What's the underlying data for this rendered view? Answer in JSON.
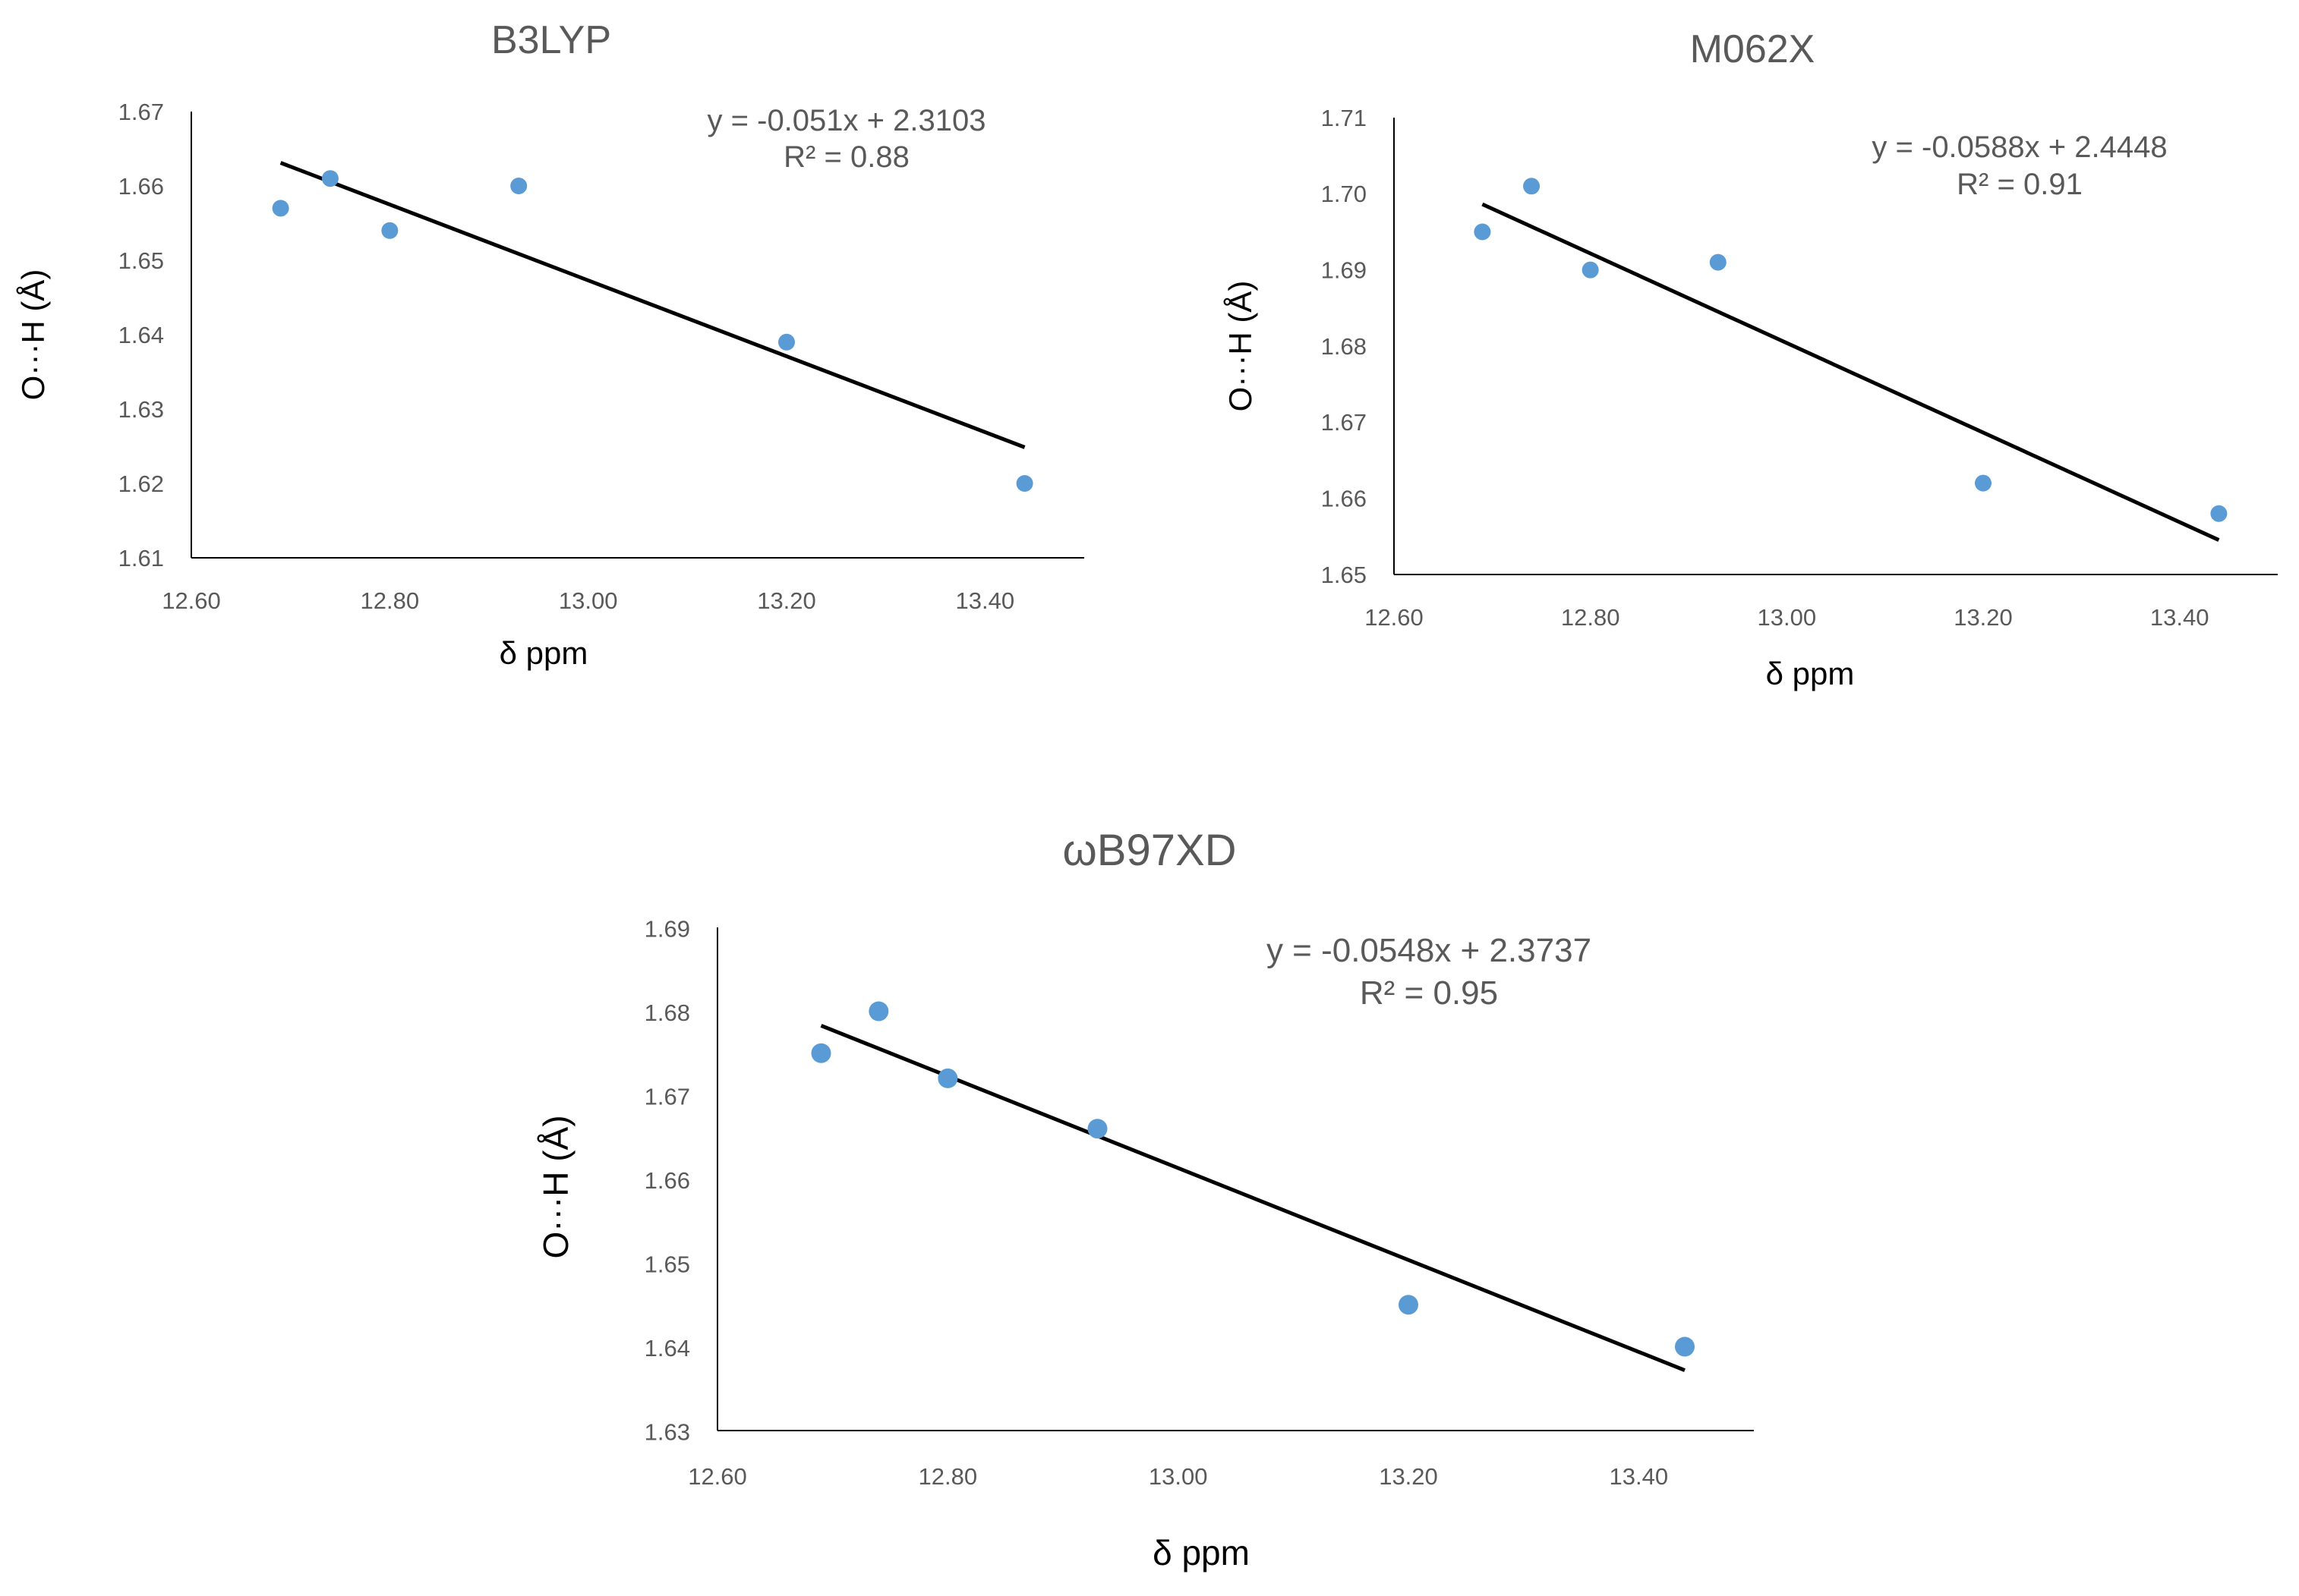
{
  "chart_data": [
    {
      "type": "scatter",
      "title": "B3LYP",
      "xlabel": "δ ppm",
      "ylabel": "O···H (Å)",
      "xlim": [
        12.6,
        13.5
      ],
      "ylim": [
        1.61,
        1.67
      ],
      "xticks": [
        "12.60",
        "12.80",
        "13.00",
        "13.20",
        "13.40"
      ],
      "yticks": [
        "1.61",
        "1.62",
        "1.63",
        "1.64",
        "1.65",
        "1.66",
        "1.67"
      ],
      "x": [
        12.69,
        12.74,
        12.8,
        12.93,
        13.2,
        13.44
      ],
      "y": [
        1.657,
        1.661,
        1.654,
        1.66,
        1.639,
        1.62
      ],
      "trendline": {
        "slope": -0.051,
        "intercept": 2.3103,
        "x_from": 12.69,
        "x_to": 13.44
      },
      "equation": "y = -0.051x + 2.3103",
      "r2": "R² = 0.88",
      "series_color": "#5B9BD5"
    },
    {
      "type": "scatter",
      "title": "M062X",
      "xlabel": "δ ppm",
      "ylabel": "O···H (Å)",
      "xlim": [
        12.6,
        13.5
      ],
      "ylim": [
        1.65,
        1.71
      ],
      "xticks": [
        "12.60",
        "12.80",
        "13.00",
        "13.20",
        "13.40"
      ],
      "yticks": [
        "1.65",
        "1.66",
        "1.67",
        "1.68",
        "1.69",
        "1.70",
        "1.71"
      ],
      "x": [
        12.69,
        12.74,
        12.8,
        12.93,
        13.2,
        13.44
      ],
      "y": [
        1.695,
        1.701,
        1.69,
        1.691,
        1.662,
        1.658
      ],
      "trendline": {
        "slope": -0.0588,
        "intercept": 2.4448,
        "x_from": 12.69,
        "x_to": 13.44
      },
      "equation": "y = -0.0588x + 2.4448",
      "r2": "R² = 0.91",
      "series_color": "#5B9BD5"
    },
    {
      "type": "scatter",
      "title": "ωB97XD",
      "xlabel": "δ ppm",
      "ylabel": "O···H (Å)",
      "xlim": [
        12.6,
        13.5
      ],
      "ylim": [
        1.63,
        1.69
      ],
      "xticks": [
        "12.60",
        "12.80",
        "13.00",
        "13.20",
        "13.40"
      ],
      "yticks": [
        "1.63",
        "1.64",
        "1.65",
        "1.66",
        "1.67",
        "1.68",
        "1.69"
      ],
      "x": [
        12.69,
        12.74,
        12.8,
        12.93,
        13.2,
        13.44
      ],
      "y": [
        1.675,
        1.68,
        1.672,
        1.666,
        1.645,
        1.64
      ],
      "trendline": {
        "slope": -0.0548,
        "intercept": 2.3737,
        "x_from": 12.69,
        "x_to": 13.44
      },
      "equation": "y = -0.0548x + 2.3737",
      "r2": "R² = 0.95",
      "series_color": "#5B9BD5"
    }
  ]
}
